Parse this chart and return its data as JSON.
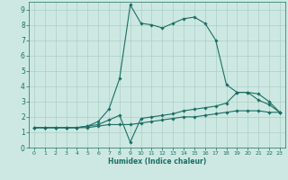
{
  "xlabel": "Humidex (Indice chaleur)",
  "bg_color": "#cde8e2",
  "grid_color": "#aacfc8",
  "line_color": "#1a6e64",
  "xlim": [
    -0.5,
    23.5
  ],
  "ylim": [
    0,
    9.5
  ],
  "xticks": [
    0,
    1,
    2,
    3,
    4,
    5,
    6,
    7,
    8,
    9,
    10,
    11,
    12,
    13,
    14,
    15,
    16,
    17,
    18,
    19,
    20,
    21,
    22,
    23
  ],
  "yticks": [
    0,
    1,
    2,
    3,
    4,
    5,
    6,
    7,
    8,
    9
  ],
  "line1_x": [
    0,
    1,
    2,
    3,
    4,
    5,
    6,
    7,
    8,
    9,
    10,
    11,
    12,
    13,
    14,
    15,
    16,
    17,
    18,
    19,
    20,
    21,
    22,
    23
  ],
  "line1_y": [
    1.3,
    1.3,
    1.3,
    1.3,
    1.3,
    1.4,
    1.7,
    2.5,
    4.5,
    9.3,
    8.1,
    8.0,
    7.8,
    8.1,
    8.4,
    8.5,
    8.1,
    7.0,
    4.1,
    3.6,
    3.6,
    3.1,
    2.8,
    2.3
  ],
  "line2_x": [
    0,
    1,
    2,
    3,
    4,
    5,
    6,
    7,
    8,
    9,
    10,
    11,
    12,
    13,
    14,
    15,
    16,
    17,
    18,
    19,
    20,
    21,
    22,
    23
  ],
  "line2_y": [
    1.3,
    1.3,
    1.3,
    1.3,
    1.3,
    1.4,
    1.5,
    1.8,
    2.1,
    0.35,
    1.9,
    2.0,
    2.1,
    2.2,
    2.4,
    2.5,
    2.6,
    2.7,
    2.9,
    3.6,
    3.6,
    3.5,
    3.0,
    2.3
  ],
  "line3_x": [
    0,
    1,
    2,
    3,
    4,
    5,
    6,
    7,
    8,
    9,
    10,
    11,
    12,
    13,
    14,
    15,
    16,
    17,
    18,
    19,
    20,
    21,
    22,
    23
  ],
  "line3_y": [
    1.3,
    1.3,
    1.3,
    1.3,
    1.3,
    1.3,
    1.4,
    1.5,
    1.5,
    1.5,
    1.6,
    1.7,
    1.8,
    1.9,
    2.0,
    2.0,
    2.1,
    2.2,
    2.3,
    2.4,
    2.4,
    2.4,
    2.3,
    2.3
  ]
}
